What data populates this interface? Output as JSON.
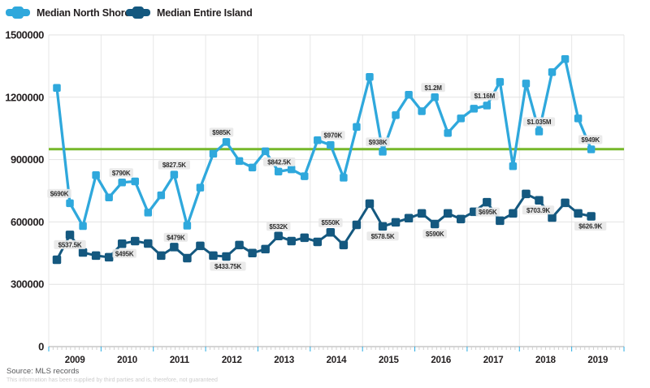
{
  "legend": {
    "items": [
      {
        "label": "Median North Shore",
        "color": "#2FA8DC"
      },
      {
        "label": "Median Entire Island",
        "color": "#14587F"
      }
    ]
  },
  "footer": {
    "source": "Source: MLS records",
    "disclaimer": "This information has been supplied by third parties and is, therefore, not guaranteed"
  },
  "chart_data": {
    "type": "line",
    "title": "",
    "frequency": "quarterly",
    "x_axis": {
      "years": [
        2009,
        2010,
        2011,
        2012,
        2013,
        2014,
        2015,
        2016,
        2017,
        2018,
        2019
      ]
    },
    "y_axis": {
      "ticks": [
        0,
        300000,
        600000,
        900000,
        1200000,
        1500000
      ],
      "max": 1500000
    },
    "grid": true,
    "legend_position": "top-left",
    "reference_line": {
      "value": 950000,
      "color": "#76B82A"
    },
    "series": [
      {
        "name": "Median North Shore",
        "color": "#2FA8DC",
        "marker": "square",
        "points": [
          {
            "v": 1245000
          },
          {
            "v": 690000,
            "label": "$690K",
            "side": "above",
            "dx": -13
          },
          {
            "v": 580000
          },
          {
            "v": 825000
          },
          {
            "v": 718000
          },
          {
            "v": 790000,
            "label": "$790K",
            "side": "above",
            "dx": -1
          },
          {
            "v": 795000
          },
          {
            "v": 645000
          },
          {
            "v": 728000
          },
          {
            "v": 827500,
            "label": "$827.5K",
            "side": "above"
          },
          {
            "v": 582000
          },
          {
            "v": 765000
          },
          {
            "v": 928000
          },
          {
            "v": 985000,
            "label": "$985K",
            "side": "above",
            "dx": -6
          },
          {
            "v": 893000
          },
          {
            "v": 862000
          },
          {
            "v": 940000
          },
          {
            "v": 842500,
            "label": "$842.5K",
            "side": "above",
            "dx": 1
          },
          {
            "v": 853000
          },
          {
            "v": 820000
          },
          {
            "v": 993000
          },
          {
            "v": 970000,
            "label": "$970K",
            "side": "above",
            "dx": 3
          },
          {
            "v": 813000
          },
          {
            "v": 1057000
          },
          {
            "v": 1298000
          },
          {
            "v": 938000,
            "label": "$938K",
            "side": "above",
            "dx": -6
          },
          {
            "v": 1114000
          },
          {
            "v": 1212000
          },
          {
            "v": 1133000
          },
          {
            "v": 1200000,
            "label": "$1.2M",
            "side": "above",
            "dx": -2
          },
          {
            "v": 1028000
          },
          {
            "v": 1098000
          },
          {
            "v": 1145000
          },
          {
            "v": 1160000,
            "label": "$1.16M",
            "side": "above",
            "dx": -3
          },
          {
            "v": 1274000
          },
          {
            "v": 868000
          },
          {
            "v": 1266000
          },
          {
            "v": 1035000,
            "label": "$1.035M",
            "side": "above"
          },
          {
            "v": 1321000
          },
          {
            "v": 1384000
          },
          {
            "v": 1098000
          },
          {
            "v": 949000,
            "label": "$949K",
            "side": "above",
            "dx": -1
          }
        ]
      },
      {
        "name": "Median Entire Island",
        "color": "#14587F",
        "marker": "square",
        "points": [
          {
            "v": 418000
          },
          {
            "v": 537500,
            "label": "$537.5K",
            "side": "below"
          },
          {
            "v": 453000
          },
          {
            "v": 438000
          },
          {
            "v": 430000
          },
          {
            "v": 495000,
            "label": "$495K",
            "side": "below",
            "dx": 3
          },
          {
            "v": 508000
          },
          {
            "v": 496000
          },
          {
            "v": 438000
          },
          {
            "v": 479000,
            "label": "$479K",
            "side": "above",
            "dx": 2
          },
          {
            "v": 426000
          },
          {
            "v": 485000
          },
          {
            "v": 438000
          },
          {
            "v": 433750,
            "label": "$433.75K",
            "side": "below",
            "dx": 2
          },
          {
            "v": 489000
          },
          {
            "v": 450000
          },
          {
            "v": 469000
          },
          {
            "v": 532000,
            "label": "$532K",
            "side": "above"
          },
          {
            "v": 508000
          },
          {
            "v": 524000
          },
          {
            "v": 504000
          },
          {
            "v": 550000,
            "label": "$550K",
            "side": "above"
          },
          {
            "v": 489000
          },
          {
            "v": 586000
          },
          {
            "v": 688000
          },
          {
            "v": 578500,
            "label": "$578.5K",
            "side": "below"
          },
          {
            "v": 598000
          },
          {
            "v": 618000
          },
          {
            "v": 641000
          },
          {
            "v": 590000,
            "label": "$590K",
            "side": "below"
          },
          {
            "v": 641000
          },
          {
            "v": 614000
          },
          {
            "v": 649000
          },
          {
            "v": 695000,
            "label": "$695K",
            "side": "below",
            "dx": 1
          },
          {
            "v": 606000
          },
          {
            "v": 641000
          },
          {
            "v": 735000
          },
          {
            "v": 703900,
            "label": "$703.9K",
            "side": "below",
            "dx": -1
          },
          {
            "v": 621000
          },
          {
            "v": 692000
          },
          {
            "v": 641000
          },
          {
            "v": 626900,
            "label": "$626.9K",
            "side": "below",
            "dx": -1
          }
        ]
      }
    ]
  }
}
